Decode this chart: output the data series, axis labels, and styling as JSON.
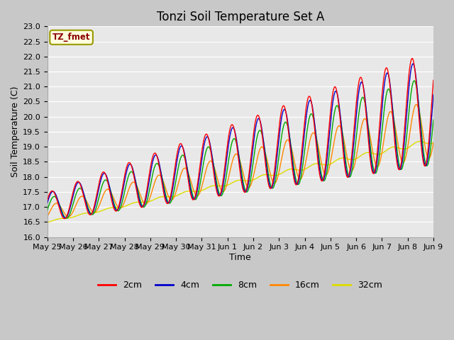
{
  "title": "Tonzi Soil Temperature Set A",
  "xlabel": "Time",
  "ylabel": "Soil Temperature (C)",
  "ylim": [
    16.0,
    23.0
  ],
  "yticks": [
    16.0,
    16.5,
    17.0,
    17.5,
    18.0,
    18.5,
    19.0,
    19.5,
    20.0,
    20.5,
    21.0,
    21.5,
    22.0,
    22.5,
    23.0
  ],
  "xtick_labels": [
    "May 25",
    "May 26",
    "May 27",
    "May 28",
    "May 29",
    "May 30",
    "May 31",
    "Jun 1",
    "Jun 2",
    "Jun 3",
    "Jun 4",
    "Jun 5",
    "Jun 6",
    "Jun 7",
    "Jun 8",
    "Jun 9"
  ],
  "legend_label": "TZ_fmet",
  "colors": {
    "2cm": "#ff0000",
    "4cm": "#0000cc",
    "8cm": "#00aa00",
    "16cm": "#ff8800",
    "32cm": "#dddd00"
  },
  "fig_bg": "#c8c8c8",
  "plot_bg": "#e8e8e8",
  "grid_color": "#ffffff",
  "title_fontsize": 12,
  "label_fontsize": 9,
  "tick_fontsize": 8,
  "legend_fontsize": 9
}
